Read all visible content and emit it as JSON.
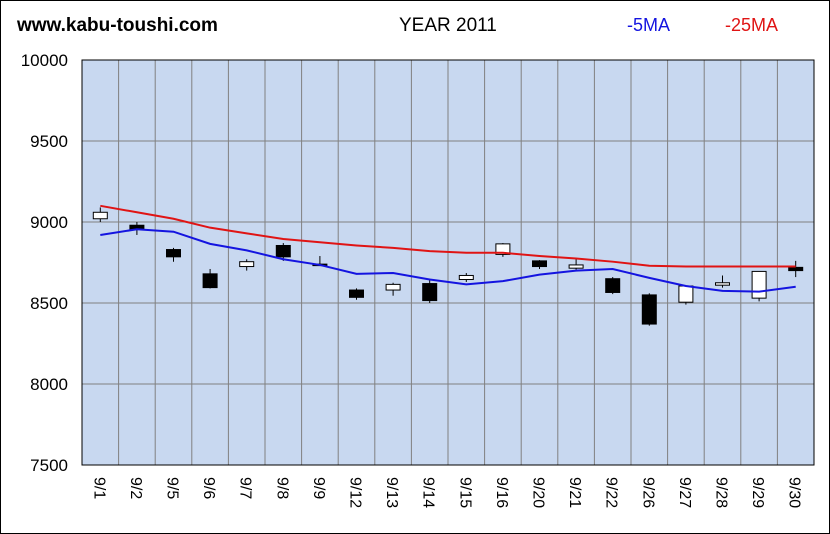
{
  "header": {
    "site": "www.kabu-toushi.com",
    "title": "YEAR 2011"
  },
  "legend": {
    "ma5": "-5MA",
    "ma25": "-25MA"
  },
  "colors": {
    "plot_bg": "#c8d8f0",
    "grid": "#808080",
    "ma5": "#1414e0",
    "ma25": "#e01414",
    "candle_up": "#ffffff",
    "candle_down": "#000000"
  },
  "chart_data": {
    "type": "candlestick",
    "title": "YEAR 2011",
    "ylim": [
      7500,
      10000
    ],
    "yticks": [
      7500,
      8000,
      8500,
      9000,
      9500,
      10000
    ],
    "grid": true,
    "legend_position": "top-right",
    "categories": [
      "9/1",
      "9/2",
      "9/5",
      "9/6",
      "9/7",
      "9/8",
      "9/9",
      "9/12",
      "9/13",
      "9/14",
      "9/15",
      "9/16",
      "9/20",
      "9/21",
      "9/22",
      "9/26",
      "9/27",
      "9/28",
      "9/29",
      "9/30"
    ],
    "candles": [
      {
        "open": 9020,
        "high": 9090,
        "low": 9000,
        "close": 9060
      },
      {
        "open": 8980,
        "high": 9000,
        "low": 8920,
        "close": 8955
      },
      {
        "open": 8830,
        "high": 8840,
        "low": 8755,
        "close": 8785
      },
      {
        "open": 8680,
        "high": 8710,
        "low": 8590,
        "close": 8595
      },
      {
        "open": 8725,
        "high": 8770,
        "low": 8700,
        "close": 8755
      },
      {
        "open": 8855,
        "high": 8870,
        "low": 8760,
        "close": 8785
      },
      {
        "open": 8740,
        "high": 8790,
        "low": 8730,
        "close": 8735
      },
      {
        "open": 8580,
        "high": 8590,
        "low": 8520,
        "close": 8535
      },
      {
        "open": 8580,
        "high": 8625,
        "low": 8545,
        "close": 8615
      },
      {
        "open": 8620,
        "high": 8650,
        "low": 8500,
        "close": 8515
      },
      {
        "open": 8645,
        "high": 8685,
        "low": 8630,
        "close": 8670
      },
      {
        "open": 8800,
        "high": 8870,
        "low": 8785,
        "close": 8865
      },
      {
        "open": 8760,
        "high": 8765,
        "low": 8710,
        "close": 8725
      },
      {
        "open": 8715,
        "high": 8770,
        "low": 8705,
        "close": 8735
      },
      {
        "open": 8650,
        "high": 8660,
        "low": 8555,
        "close": 8565
      },
      {
        "open": 8550,
        "high": 8560,
        "low": 8360,
        "close": 8370
      },
      {
        "open": 8505,
        "high": 8610,
        "low": 8490,
        "close": 8605
      },
      {
        "open": 8610,
        "high": 8670,
        "low": 8595,
        "close": 8625
      },
      {
        "open": 8530,
        "high": 8695,
        "low": 8510,
        "close": 8695
      },
      {
        "open": 8720,
        "high": 8760,
        "low": 8660,
        "close": 8700
      }
    ],
    "series": [
      {
        "name": "5MA",
        "values": [
          8920,
          8955,
          8940,
          8865,
          8825,
          8770,
          8735,
          8680,
          8685,
          8645,
          8615,
          8635,
          8675,
          8700,
          8710,
          8655,
          8605,
          8575,
          8570,
          8600
        ]
      },
      {
        "name": "25MA",
        "values": [
          9100,
          9060,
          9020,
          8965,
          8930,
          8895,
          8875,
          8855,
          8840,
          8820,
          8810,
          8810,
          8790,
          8775,
          8755,
          8730,
          8725,
          8725,
          8725,
          8725
        ]
      }
    ]
  }
}
